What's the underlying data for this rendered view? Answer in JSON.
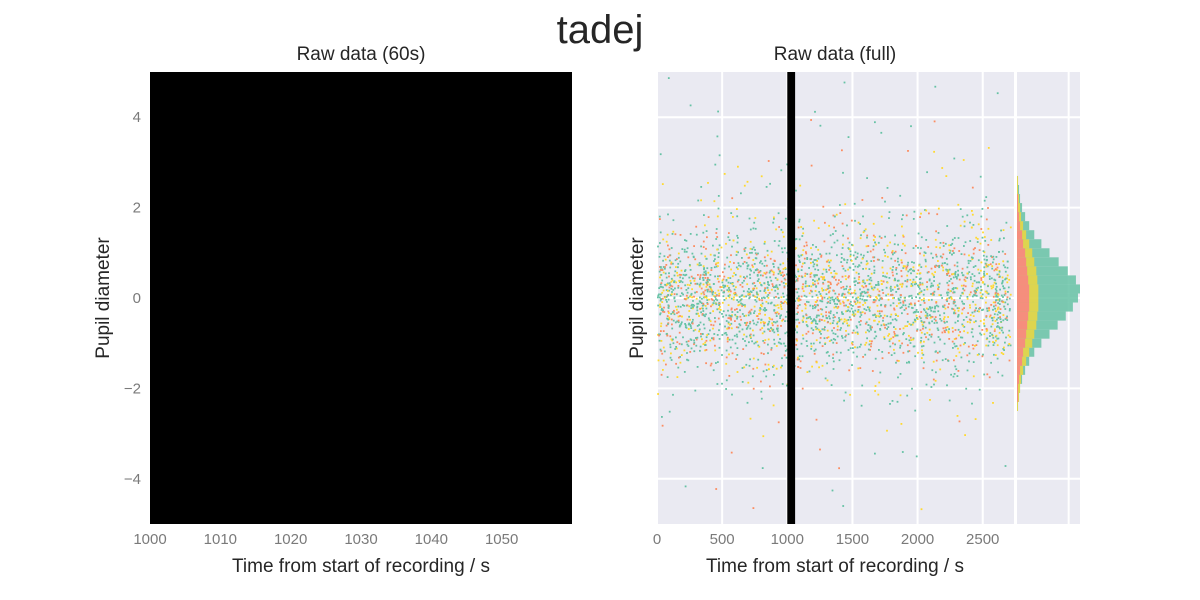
{
  "figure": {
    "suptitle": "tadej"
  },
  "colors": {
    "grid_bg": "#eaeaf2",
    "grid_line": "#ffffff",
    "dark_panel": "#000000",
    "series_green": "#66c2a5",
    "series_orange": "#fc8d62",
    "series_yellow": "#ffd92f",
    "series_pink": "#ff6f91",
    "highlight_band": "#000000"
  },
  "chart_data": [
    {
      "type": "scatter",
      "title": "Raw data (60s)",
      "xlabel": "Time from start of recording / s",
      "ylabel": "Pupil diameter",
      "xlim": [
        1000,
        1060
      ],
      "ylim": [
        -5,
        5
      ],
      "xticks": [
        1000,
        1010,
        1020,
        1030,
        1040,
        1050
      ],
      "yticks": [
        -4,
        -2,
        0,
        2,
        4
      ],
      "xtick_labels": [
        "1000",
        "1010",
        "1020",
        "1030",
        "1040",
        "1050"
      ],
      "ytick_labels": [
        "−4",
        "−2",
        "0",
        "2",
        "4"
      ],
      "background": "black",
      "series": []
    },
    {
      "type": "scatter",
      "title": "Raw data (full)",
      "xlabel": "Time from start of recording / s",
      "ylabel": "Pupil diameter",
      "xlim": [
        0,
        2740
      ],
      "ylim": [
        -5,
        5
      ],
      "xticks": [
        0,
        500,
        1000,
        1500,
        2000,
        2500
      ],
      "xtick_labels": [
        "0",
        "500",
        "1000",
        "1500",
        "2000",
        "2500"
      ],
      "yticks": [
        -4,
        -2,
        0,
        2,
        4
      ],
      "grid": true,
      "highlight_x_range": [
        1000,
        1060
      ],
      "data_x_range": [
        0,
        2710
      ],
      "series_colors": [
        "green",
        "orange",
        "yellow"
      ],
      "marginal_histogram": {
        "orientation": "horizontal",
        "bin_edges": [
          -2.5,
          -2.3,
          -2.1,
          -1.9,
          -1.7,
          -1.5,
          -1.3,
          -1.1,
          -0.9,
          -0.7,
          -0.5,
          -0.3,
          -0.1,
          0.1,
          0.3,
          0.5,
          0.7,
          0.9,
          1.1,
          1.3,
          1.5,
          1.7,
          1.9,
          2.1,
          2.3,
          2.5,
          2.7
        ],
        "green_counts": [
          1,
          2,
          3,
          5,
          8,
          12,
          17,
          24,
          32,
          40,
          48,
          55,
          60,
          62,
          58,
          50,
          41,
          32,
          24,
          17,
          12,
          8,
          5,
          3,
          2,
          1
        ],
        "yellow_counts": [
          1,
          2,
          3,
          4,
          6,
          9,
          12,
          15,
          17,
          19,
          20,
          21,
          21,
          21,
          20,
          19,
          17,
          15,
          12,
          9,
          6,
          4,
          3,
          2,
          1,
          1
        ],
        "orange_counts": [
          0,
          1,
          1,
          2,
          3,
          5,
          6,
          8,
          9,
          10,
          11,
          12,
          12,
          12,
          11,
          10,
          9,
          8,
          6,
          5,
          3,
          2,
          1,
          1,
          0,
          0
        ],
        "max_count": 62
      }
    }
  ]
}
